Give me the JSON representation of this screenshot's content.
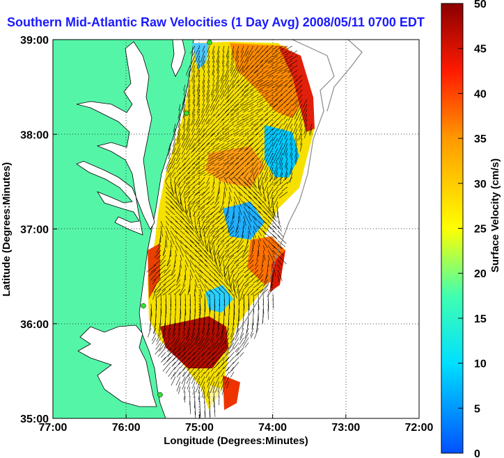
{
  "title": "Southern Mid-Atlantic Raw Velocities (1 Day Avg) 2008/05/11 0700 EDT",
  "x_axis": {
    "label": "Longitude (Degrees:Minutes)",
    "ticks": [
      "77:00",
      "76:00",
      "75:00",
      "74:00",
      "73:00",
      "72:00"
    ]
  },
  "y_axis": {
    "label": "Latitude (Degrees:Minutes)",
    "ticks": [
      "39:00",
      "38:00",
      "37:00",
      "36:00",
      "35:00"
    ]
  },
  "colorbar": {
    "label": "Surface Velocity (cm/s)",
    "ticks": [
      "0",
      "5",
      "10",
      "15",
      "20",
      "25",
      "30",
      "35",
      "40",
      "45",
      "50"
    ],
    "min": 0,
    "max": 50
  },
  "map": {
    "lon_range": [
      -77,
      -72
    ],
    "lat_range": [
      35,
      39
    ],
    "land_color": "#55f5a8",
    "grid": true
  },
  "colors": {
    "title": "#1a1aff",
    "station_marker": "#33dd33"
  }
}
